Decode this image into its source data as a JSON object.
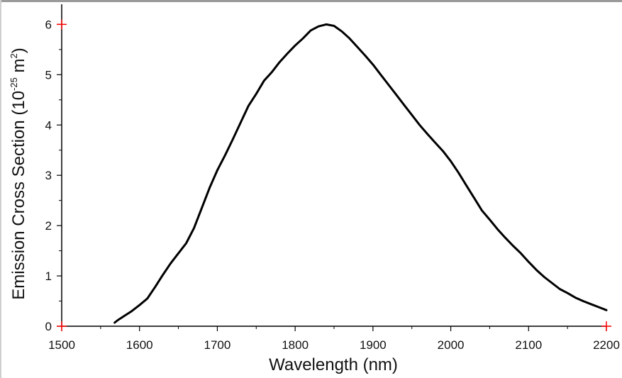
{
  "chart_data": {
    "type": "line",
    "xlabel": "Wavelength (nm)",
    "ylabel_prefix": "Emission Cross Section (10",
    "ylabel_exp1": "-25",
    "ylabel_unit": " m",
    "ylabel_exp2": "2",
    "ylabel_suffix": ")",
    "xlim": [
      1500,
      2200
    ],
    "ylim": [
      0,
      6.4
    ],
    "xticks": [
      1500,
      1600,
      1700,
      1800,
      1900,
      2000,
      2100,
      2200
    ],
    "xtick_labels": [
      "1500",
      "1600",
      "1700",
      "1800",
      "1900",
      "2000",
      "2100",
      "2200"
    ],
    "yticks": [
      0,
      1,
      2,
      3,
      4,
      5,
      6
    ],
    "ytick_labels": [
      "0",
      "1",
      "2",
      "3",
      "4",
      "5",
      "6"
    ],
    "grid": false,
    "line_color": "#000000",
    "marker_color": "#ff0000",
    "series": [
      {
        "x": [
          1568,
          1572,
          1580,
          1590,
          1600,
          1610,
          1620,
          1630,
          1640,
          1650,
          1660,
          1670,
          1680,
          1690,
          1700,
          1710,
          1720,
          1730,
          1740,
          1750,
          1760,
          1770,
          1780,
          1790,
          1800,
          1810,
          1820,
          1830,
          1840,
          1850,
          1860,
          1870,
          1880,
          1890,
          1900,
          1910,
          1920,
          1930,
          1940,
          1950,
          1960,
          1970,
          1980,
          1990,
          2000,
          2010,
          2020,
          2030,
          2040,
          2050,
          2060,
          2070,
          2080,
          2090,
          2100,
          2110,
          2120,
          2130,
          2140,
          2150,
          2160,
          2170,
          2180,
          2190,
          2200
        ],
        "y": [
          0.07,
          0.12,
          0.2,
          0.3,
          0.42,
          0.55,
          0.78,
          1.02,
          1.25,
          1.45,
          1.65,
          1.95,
          2.35,
          2.75,
          3.1,
          3.4,
          3.72,
          4.05,
          4.38,
          4.62,
          4.88,
          5.05,
          5.25,
          5.42,
          5.58,
          5.72,
          5.88,
          5.96,
          6.0,
          5.97,
          5.86,
          5.72,
          5.55,
          5.38,
          5.2,
          5.0,
          4.8,
          4.6,
          4.4,
          4.2,
          4.0,
          3.82,
          3.65,
          3.48,
          3.28,
          3.05,
          2.8,
          2.55,
          2.3,
          2.12,
          1.93,
          1.76,
          1.6,
          1.45,
          1.28,
          1.12,
          0.98,
          0.86,
          0.74,
          0.66,
          0.57,
          0.5,
          0.44,
          0.38,
          0.32
        ]
      }
    ]
  }
}
